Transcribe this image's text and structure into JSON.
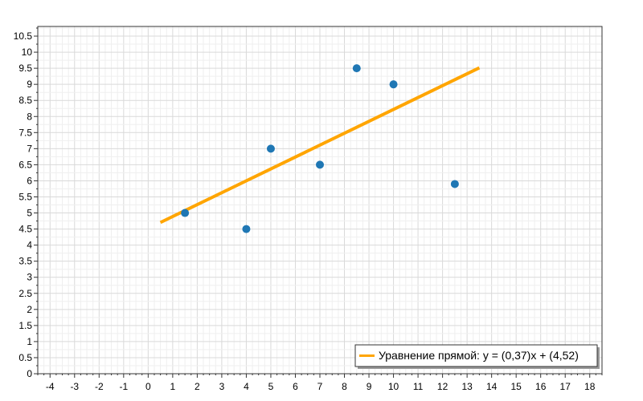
{
  "chart_data": {
    "type": "scatter",
    "xlim": [
      -4.5,
      18.5
    ],
    "ylim": [
      0,
      10.8
    ],
    "x_ticks": [
      -4,
      -3,
      -2,
      -1,
      0,
      1,
      2,
      3,
      4,
      5,
      6,
      7,
      8,
      9,
      10,
      11,
      12,
      13,
      14,
      15,
      16,
      17,
      18
    ],
    "y_ticks": [
      0,
      0.5,
      1,
      1.5,
      2,
      2.5,
      3,
      3.5,
      4,
      4.5,
      5,
      5.5,
      6,
      6.5,
      7,
      7.5,
      8,
      8.5,
      9,
      9.5,
      10,
      10.5
    ],
    "grid": true,
    "legend_position": "bottom-right",
    "series": [
      {
        "type": "scatter",
        "color": "#1f77b4",
        "points": [
          {
            "x": 1.5,
            "y": 5.0
          },
          {
            "x": 4.0,
            "y": 4.5
          },
          {
            "x": 5.0,
            "y": 7.0
          },
          {
            "x": 7.0,
            "y": 6.5
          },
          {
            "x": 8.5,
            "y": 9.5
          },
          {
            "x": 10.0,
            "y": 9.0
          },
          {
            "x": 12.5,
            "y": 5.9
          }
        ]
      },
      {
        "type": "line",
        "name": "Уравнение прямой: y = (0,37)x + (4,52)",
        "color": "#ffa500",
        "slope": 0.37,
        "intercept": 4.52,
        "x_range": [
          0.5,
          13.5
        ]
      }
    ]
  }
}
